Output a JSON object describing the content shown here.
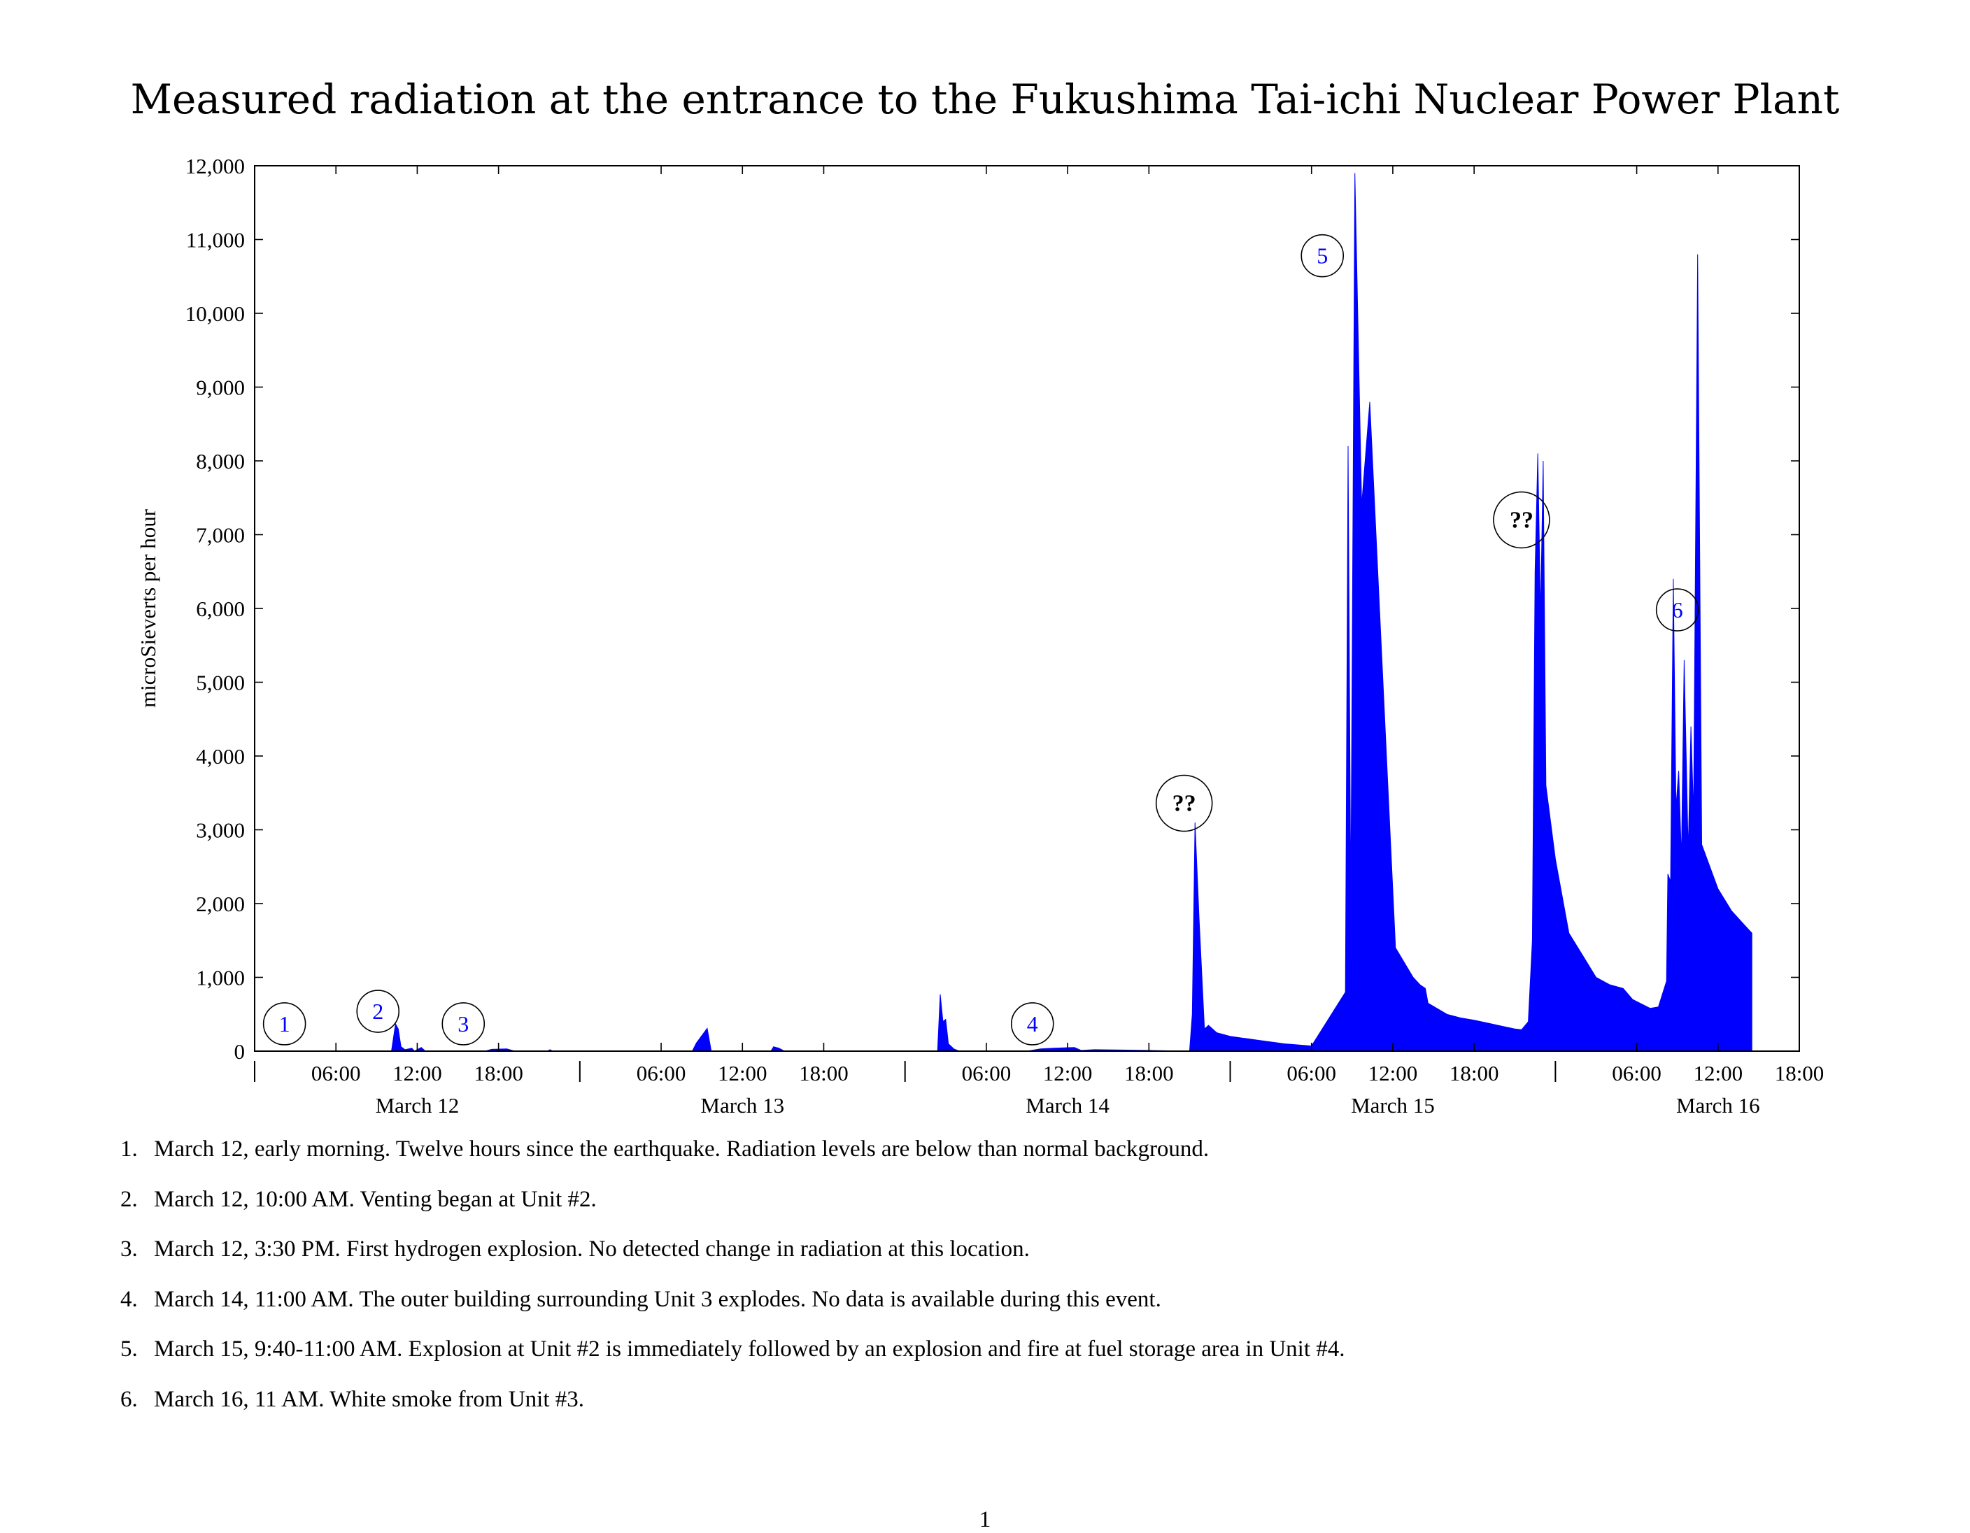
{
  "page": {
    "title": "Measured radiation at the entrance to the Fukushima Tai-ichi Nuclear Power Plant",
    "page_number": "1"
  },
  "chart_data": {
    "type": "area",
    "title": "Measured radiation at the entrance to the Fukushima Tai-ichi Nuclear Power Plant",
    "xlabel": "",
    "ylabel": "microSieverts per hour",
    "x_unit": "hours since March 12 00:00",
    "xlim": [
      0,
      114
    ],
    "ylim": [
      0,
      12000
    ],
    "yticks": [
      0,
      1000,
      2000,
      3000,
      4000,
      5000,
      6000,
      7000,
      8000,
      9000,
      10000,
      11000,
      12000
    ],
    "ytick_labels": [
      "0",
      "1,000",
      "2,000",
      "3,000",
      "4,000",
      "5,000",
      "6,000",
      "7,000",
      "8,000",
      "9,000",
      "10,000",
      "11,000",
      "12,000"
    ],
    "xticks": [
      {
        "x": 6,
        "label": "06:00"
      },
      {
        "x": 12,
        "label": "12:00"
      },
      {
        "x": 18,
        "label": "18:00"
      },
      {
        "x": 30,
        "label": "06:00"
      },
      {
        "x": 36,
        "label": "12:00"
      },
      {
        "x": 42,
        "label": "18:00"
      },
      {
        "x": 54,
        "label": "06:00"
      },
      {
        "x": 60,
        "label": "12:00"
      },
      {
        "x": 66,
        "label": "18:00"
      },
      {
        "x": 78,
        "label": "06:00"
      },
      {
        "x": 84,
        "label": "12:00"
      },
      {
        "x": 90,
        "label": "18:00"
      },
      {
        "x": 102,
        "label": "06:00"
      },
      {
        "x": 108,
        "label": "12:00"
      },
      {
        "x": 114,
        "label": "18:00"
      }
    ],
    "day_separators": [
      0,
      24,
      48,
      72,
      96
    ],
    "day_labels": [
      {
        "x": 12,
        "label": "March 12"
      },
      {
        "x": 36,
        "label": "March 13"
      },
      {
        "x": 60,
        "label": "March 14"
      },
      {
        "x": 84,
        "label": "March 15"
      },
      {
        "x": 108,
        "label": "March 16"
      }
    ],
    "grid": false,
    "series": [
      {
        "color": "#0000ff",
        "points": [
          [
            0,
            0
          ],
          [
            10.1,
            0
          ],
          [
            10.4,
            370
          ],
          [
            10.6,
            300
          ],
          [
            10.8,
            60
          ],
          [
            11.1,
            20
          ],
          [
            11.6,
            40
          ],
          [
            11.8,
            0
          ],
          [
            12.3,
            50
          ],
          [
            12.6,
            0
          ],
          [
            17,
            0
          ],
          [
            17.5,
            25
          ],
          [
            18.6,
            30
          ],
          [
            19.2,
            0
          ],
          [
            21.6,
            0
          ],
          [
            21.8,
            20
          ],
          [
            22,
            0
          ],
          [
            32.3,
            0
          ],
          [
            32.6,
            110
          ],
          [
            33.4,
            310
          ],
          [
            33.7,
            0
          ],
          [
            38.1,
            0
          ],
          [
            38.3,
            60
          ],
          [
            38.7,
            40
          ],
          [
            39.1,
            0
          ],
          [
            50.4,
            0
          ],
          [
            50.6,
            770
          ],
          [
            50.8,
            400
          ],
          [
            51,
            430
          ],
          [
            51.2,
            100
          ],
          [
            51.6,
            30
          ],
          [
            52,
            0
          ],
          [
            57,
            0
          ],
          [
            58,
            30
          ],
          [
            59,
            40
          ],
          [
            60.5,
            50
          ],
          [
            61,
            10
          ],
          [
            62,
            20
          ],
          [
            66,
            10
          ],
          [
            69,
            0
          ],
          [
            69.2,
            500
          ],
          [
            69.4,
            3100
          ],
          [
            69.7,
            1800
          ],
          [
            70.1,
            300
          ],
          [
            70.4,
            350
          ],
          [
            71,
            250
          ],
          [
            72,
            200
          ],
          [
            74,
            150
          ],
          [
            76,
            100
          ],
          [
            78,
            70
          ],
          [
            80.5,
            800
          ],
          [
            80.7,
            8200
          ],
          [
            80.9,
            2000
          ],
          [
            81.2,
            11900
          ],
          [
            81.7,
            7400
          ],
          [
            82.3,
            8800
          ],
          [
            84.2,
            1400
          ],
          [
            85.5,
            1000
          ],
          [
            86,
            900
          ],
          [
            86.4,
            850
          ],
          [
            86.6,
            650
          ],
          [
            88,
            500
          ],
          [
            89,
            450
          ],
          [
            90,
            420
          ],
          [
            91,
            380
          ],
          [
            92,
            340
          ],
          [
            93,
            300
          ],
          [
            93.5,
            290
          ],
          [
            94,
            400
          ],
          [
            94.3,
            1500
          ],
          [
            94.5,
            6500
          ],
          [
            94.7,
            8100
          ],
          [
            94.9,
            5900
          ],
          [
            95.1,
            8000
          ],
          [
            95.3,
            3600
          ],
          [
            96,
            2600
          ],
          [
            97,
            1600
          ],
          [
            98,
            1300
          ],
          [
            99,
            1000
          ],
          [
            100,
            900
          ],
          [
            101,
            850
          ],
          [
            101.7,
            700
          ],
          [
            103,
            580
          ],
          [
            103.6,
            600
          ],
          [
            104.2,
            950
          ],
          [
            104.3,
            2400
          ],
          [
            104.5,
            2300
          ],
          [
            104.7,
            6400
          ],
          [
            104.9,
            3300
          ],
          [
            105.1,
            3800
          ],
          [
            105.3,
            2600
          ],
          [
            105.5,
            5300
          ],
          [
            105.8,
            2700
          ],
          [
            106,
            4400
          ],
          [
            106.2,
            3200
          ],
          [
            106.5,
            10800
          ],
          [
            106.8,
            2800
          ],
          [
            108,
            2200
          ],
          [
            109,
            1900
          ],
          [
            110,
            1700
          ],
          [
            110.5,
            1600
          ],
          [
            110.5,
            0
          ]
        ]
      }
    ],
    "annotations": [
      {
        "label": "1",
        "x": 2.2,
        "y": 370,
        "style": "blue"
      },
      {
        "label": "2",
        "x": 9.1,
        "y": 540,
        "style": "blue"
      },
      {
        "label": "3",
        "x": 15.4,
        "y": 370,
        "style": "blue"
      },
      {
        "label": "4",
        "x": 57.4,
        "y": 370,
        "style": "blue"
      },
      {
        "label": "5",
        "x": 78.8,
        "y": 10780,
        "style": "blue"
      },
      {
        "label": "??",
        "x": 68.6,
        "y": 3360,
        "style": "bold"
      },
      {
        "label": "??",
        "x": 93.5,
        "y": 7200,
        "style": "bold"
      },
      {
        "label": "6",
        "x": 105,
        "y": 5980,
        "style": "blue"
      }
    ]
  },
  "notes": [
    {
      "num": "1.",
      "text": "March 12, early morning. Twelve hours since the earthquake. Radiation levels are below than normal background."
    },
    {
      "num": "2.",
      "text": "March 12, 10:00 AM. Venting began at Unit #2."
    },
    {
      "num": "3.",
      "text": "March 12, 3:30 PM. First hydrogen explosion. No detected change in radiation at this location."
    },
    {
      "num": "4.",
      "text": "March 14, 11:00 AM. The outer building surrounding Unit 3 explodes. No data is available during this event."
    },
    {
      "num": "5.",
      "text": "March 15, 9:40-11:00 AM. Explosion at Unit #2 is immediately followed by an explosion and fire at fuel storage area in Unit #4."
    },
    {
      "num": "6.",
      "text": "March 16, 11 AM. White smoke from Unit #3."
    }
  ]
}
